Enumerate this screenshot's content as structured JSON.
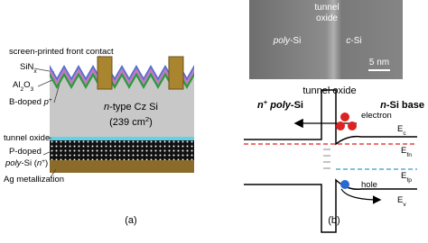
{
  "panel_a": {
    "front_contact": [
      {
        "text": "screen-printed front contact"
      }
    ],
    "sinx": [
      {
        "text": "SiN"
      },
      {
        "sub": "x"
      }
    ],
    "al2o3": [
      {
        "text": "Al"
      },
      {
        "sub": "2"
      },
      {
        "text": "O"
      },
      {
        "sub": "3"
      }
    ],
    "b_doped": [
      {
        "text": "B-doped "
      },
      {
        "italic": "p"
      },
      {
        "sup": "+"
      }
    ],
    "bulk_type": [
      {
        "italic": "n"
      },
      {
        "text": "-type Cz Si"
      }
    ],
    "bulk_area": [
      {
        "text": "(239 cm"
      },
      {
        "sup": "2"
      },
      {
        "text": ")"
      }
    ],
    "tunnel_oxide": [
      {
        "text": "tunnel oxide"
      }
    ],
    "p_doped_1": [
      {
        "text": "P-doped"
      }
    ],
    "p_doped_2": [
      {
        "italic": "poly"
      },
      {
        "text": "-Si ("
      },
      {
        "italic": "n"
      },
      {
        "sup": "+"
      },
      {
        "text": ")"
      }
    ],
    "ag": [
      {
        "text": "Ag metallization"
      }
    ],
    "caption": [
      {
        "text": "(a)"
      }
    ]
  },
  "panel_b": {
    "tem_tunnel": [
      {
        "text": "tunnel"
      }
    ],
    "tem_oxide": [
      {
        "text": "oxide"
      }
    ],
    "tem_poly": [
      {
        "italic": "poly"
      },
      {
        "text": "-Si"
      }
    ],
    "tem_csi": [
      {
        "italic": "c"
      },
      {
        "text": "-Si"
      }
    ],
    "tem_scale": [
      {
        "text": "5 nm"
      }
    ],
    "n_poly": [
      {
        "italic": "n"
      },
      {
        "sup": "+"
      },
      {
        "italic": " poly"
      },
      {
        "text": "-Si"
      }
    ],
    "tunnel_oxide": [
      {
        "text": "tunnel oxide"
      }
    ],
    "n_base": [
      {
        "italic": "n"
      },
      {
        "text": "-Si base"
      }
    ],
    "electron": [
      {
        "text": "electron"
      }
    ],
    "ec": [
      {
        "text": "E"
      },
      {
        "sub": "c"
      }
    ],
    "efn": [
      {
        "text": "E"
      },
      {
        "sub": "fn"
      }
    ],
    "efp": [
      {
        "text": "E"
      },
      {
        "sub": "fp"
      }
    ],
    "hole": [
      {
        "text": "hole"
      }
    ],
    "ev": [
      {
        "text": "E"
      },
      {
        "sub": "v"
      }
    ],
    "caption": [
      {
        "text": "(b)"
      }
    ]
  }
}
